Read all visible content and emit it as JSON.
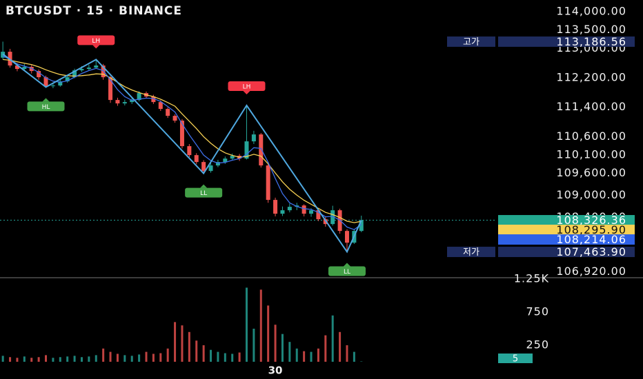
{
  "chart_data": {
    "type": "candlestick",
    "title": "BTCUSDT · 15 · BINANCE",
    "up_color": "#26a69a",
    "down_color": "#ef5350",
    "xlim": [
      -0.4,
      50.6
    ],
    "xticks": [
      {
        "value": 38,
        "label": "30"
      }
    ],
    "ylim": [
      106780,
      114320
    ],
    "yticks": [
      {
        "value": 114000,
        "label": "114,000.00"
      },
      {
        "value": 113500,
        "label": "113,500.00"
      },
      {
        "value": 113000,
        "label": "113,000.00"
      },
      {
        "value": 112200,
        "label": "112,200.00"
      },
      {
        "value": 111400,
        "label": "111,400.00"
      },
      {
        "value": 110600,
        "label": "110,600.00"
      },
      {
        "value": 110100,
        "label": "110,100.00"
      },
      {
        "value": 109600,
        "label": "109,600.00"
      },
      {
        "value": 109000,
        "label": "109,000.00"
      },
      {
        "value": 108400,
        "label": "108,400.00"
      },
      {
        "value": 106920,
        "label": "106,920.00"
      }
    ],
    "open": [
      112750,
      112912,
      112537,
      112443,
      112500,
      112387,
      112218,
      111974,
      111993,
      112105,
      112218,
      112405,
      112443,
      112480,
      112537,
      112218,
      111599,
      111505,
      111542,
      111599,
      111786,
      111693,
      111542,
      111355,
      111167,
      111036,
      110342,
      110098,
      109910,
      109666,
      109817,
      109910,
      110004,
      110079,
      110004,
      110473,
      110661,
      109817,
      108879,
      108503,
      108597,
      108691,
      108728,
      108503,
      108597,
      108353,
      108222,
      108597,
      108034,
      107715,
      108034
    ],
    "high": [
      113186.56,
      112990,
      112600,
      112580,
      112560,
      112430,
      112260,
      112060,
      112160,
      112260,
      112450,
      112520,
      112560,
      112700,
      112580,
      112250,
      111660,
      111610,
      111680,
      111840,
      111830,
      111740,
      111590,
      111400,
      111210,
      111080,
      110400,
      110150,
      109960,
      109880,
      109970,
      110060,
      110140,
      110130,
      111450,
      110760,
      110700,
      109860,
      108940,
      108700,
      108780,
      108800,
      108760,
      108650,
      108640,
      108420,
      108720,
      108640,
      108080,
      108090,
      108450
    ],
    "low": [
      112700,
      112480,
      112380,
      112390,
      112320,
      112150,
      111940,
      111920,
      111960,
      112070,
      112190,
      112360,
      112400,
      112450,
      112150,
      111520,
      111440,
      111450,
      111490,
      111560,
      111640,
      111490,
      111300,
      111110,
      110980,
      110280,
      110040,
      109850,
      109600,
      109620,
      109770,
      109860,
      109950,
      109940,
      109980,
      110400,
      109760,
      108800,
      108430,
      108440,
      108540,
      108600,
      108430,
      108420,
      108300,
      108150,
      108180,
      107960,
      107463.9,
      107680,
      108000
    ],
    "close": [
      112912,
      112537,
      112443,
      112500,
      112387,
      112218,
      111974,
      111993,
      112105,
      112218,
      112405,
      112443,
      112480,
      112537,
      112218,
      111599,
      111505,
      111542,
      111599,
      111786,
      111693,
      111542,
      111355,
      111167,
      111036,
      110342,
      110098,
      109910,
      109666,
      109817,
      109910,
      110004,
      110079,
      110004,
      110473,
      110661,
      109817,
      108879,
      108503,
      108597,
      108691,
      108728,
      108503,
      108597,
      108353,
      108222,
      108597,
      108034,
      107715,
      108034,
      108326.36
    ],
    "moving_averages": [
      {
        "color": "#f7d154",
        "values": [
          112700,
          112680,
          112640,
          112600,
          112560,
          112500,
          112420,
          112350,
          112290,
          112260,
          112250,
          112260,
          112280,
          112310,
          112300,
          112200,
          112080,
          111960,
          111870,
          111800,
          111740,
          111690,
          111620,
          111530,
          111430,
          111220,
          111020,
          110820,
          110600,
          110420,
          110270,
          110160,
          110090,
          110040,
          110060,
          110120,
          110070,
          109860,
          109610,
          109370,
          109170,
          109010,
          108870,
          108760,
          108650,
          108540,
          108480,
          108400,
          108300,
          108260,
          108295.9
        ]
      },
      {
        "color": "#3d6fe8",
        "values": [
          112800,
          112700,
          112580,
          112520,
          112460,
          112350,
          112200,
          112110,
          112080,
          112120,
          112220,
          112320,
          112400,
          112460,
          112400,
          112150,
          111880,
          111690,
          111590,
          111620,
          111650,
          111640,
          111560,
          111420,
          111270,
          110950,
          110650,
          110380,
          110100,
          109950,
          109880,
          109900,
          109960,
          110000,
          110120,
          110300,
          110280,
          109900,
          109460,
          109050,
          108800,
          108700,
          108640,
          108620,
          108540,
          108420,
          108430,
          108330,
          108140,
          108070,
          108214.06
        ]
      }
    ],
    "zigzag": {
      "color": "#4fa8e0",
      "high_color": "#f23645",
      "low_color": "#43a047",
      "x": [
        0,
        6,
        13,
        28,
        34,
        48,
        50
      ],
      "values": [
        112850,
        111950,
        112700,
        109600,
        111450,
        107463.9,
        108326.36
      ],
      "labels": [
        null,
        "HL",
        "LH",
        "LL",
        "LH",
        "LL",
        null
      ]
    },
    "volume": {
      "ylim": [
        0,
        1260
      ],
      "yticks": [
        {
          "value": 1250,
          "label": "1.25K"
        },
        250,
        750
      ],
      "values": [
        90,
        70,
        60,
        80,
        60,
        70,
        100,
        60,
        70,
        80,
        90,
        70,
        80,
        100,
        200,
        150,
        120,
        100,
        90,
        110,
        150,
        120,
        130,
        200,
        600,
        550,
        450,
        320,
        250,
        180,
        150,
        130,
        120,
        140,
        1120,
        500,
        1090,
        850,
        560,
        420,
        300,
        200,
        160,
        150,
        200,
        400,
        700,
        450,
        250,
        150,
        5
      ]
    },
    "price_labels": [
      {
        "value": 113186.56,
        "label": "113,186.56",
        "name": "고가",
        "color": "#1e2b5e"
      },
      {
        "value": 108326.36,
        "label": "108,326.36",
        "color": "#22a88f"
      },
      {
        "value": 108295.9,
        "label": "108,295.90",
        "color": "#f7d154"
      },
      {
        "value": 108214.06,
        "label": "108,214.06",
        "color": "#2f62e8"
      },
      {
        "value": 107463.9,
        "label": "107,463.90",
        "name": "저가",
        "color": "#1e2b5e"
      }
    ]
  }
}
